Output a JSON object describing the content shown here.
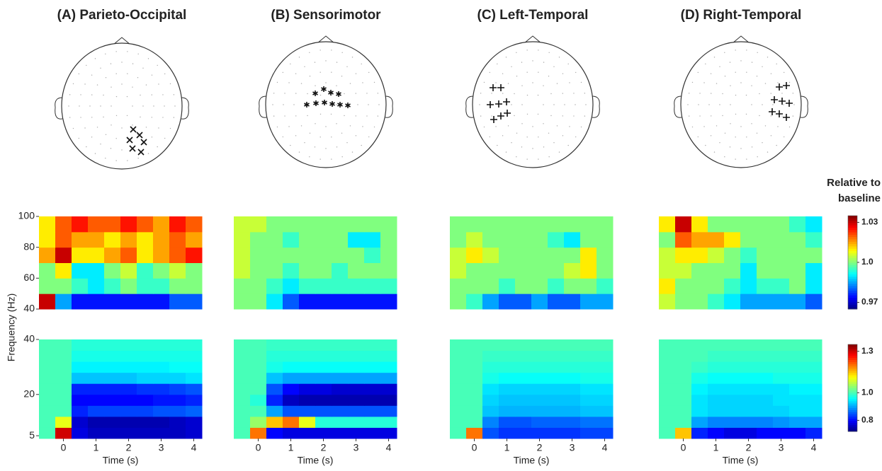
{
  "chart_data": [
    {
      "type": "heatmap",
      "title": "(A) Parieto-Occipital",
      "marker": "x",
      "x": [
        -0.5,
        0,
        0.5,
        1,
        1.5,
        2,
        2.5,
        3,
        3.5,
        4
      ],
      "y": [
        45,
        55,
        65,
        75,
        85,
        95
      ],
      "xlim": [
        -0.75,
        4.25
      ],
      "ylim": [
        40,
        100
      ],
      "yticks": [
        40,
        60,
        80,
        100
      ],
      "zlim": [
        0.965,
        1.035
      ],
      "z": [
        [
          1.03,
          0.985,
          0.975,
          0.975,
          0.975,
          0.975,
          0.975,
          0.975,
          0.98,
          0.98
        ],
        [
          1.0,
          1.0,
          0.995,
          0.99,
          0.995,
          1.0,
          0.995,
          0.995,
          1.0,
          1.0
        ],
        [
          1.0,
          1.01,
          0.99,
          0.99,
          1.0,
          1.005,
          0.995,
          1.0,
          1.005,
          1.0
        ],
        [
          1.015,
          1.03,
          1.01,
          1.01,
          1.015,
          1.02,
          1.01,
          1.015,
          1.02,
          1.025
        ],
        [
          1.01,
          1.02,
          1.015,
          1.015,
          1.01,
          1.015,
          1.01,
          1.015,
          1.02,
          1.015
        ],
        [
          1.01,
          1.02,
          1.025,
          1.02,
          1.02,
          1.025,
          1.02,
          1.015,
          1.025,
          1.02
        ]
      ]
    },
    {
      "type": "heatmap",
      "title": "(B) Sensorimotor",
      "marker": "asterisk",
      "x": [
        -0.5,
        0,
        0.5,
        1,
        1.5,
        2,
        2.5,
        3,
        3.5,
        4
      ],
      "y": [
        45,
        55,
        65,
        75,
        85,
        95
      ],
      "xlim": [
        -0.75,
        4.25
      ],
      "ylim": [
        40,
        100
      ],
      "zlim": [
        0.965,
        1.035
      ],
      "z": [
        [
          1.0,
          1.0,
          0.99,
          0.98,
          0.975,
          0.975,
          0.975,
          0.975,
          0.975,
          0.975
        ],
        [
          1.0,
          1.0,
          0.995,
          0.99,
          0.995,
          0.995,
          0.995,
          0.995,
          0.995,
          0.995
        ],
        [
          1.005,
          1.0,
          1.0,
          0.995,
          1.0,
          1.0,
          0.995,
          1.0,
          1.0,
          1.0
        ],
        [
          1.005,
          1.0,
          1.0,
          1.0,
          1.0,
          1.0,
          1.0,
          1.0,
          0.995,
          1.0
        ],
        [
          1.005,
          1.0,
          1.0,
          0.995,
          1.0,
          1.0,
          1.0,
          0.99,
          0.99,
          1.0
        ],
        [
          1.005,
          1.005,
          1.0,
          1.0,
          1.0,
          1.0,
          1.0,
          1.0,
          1.0,
          1.0
        ]
      ]
    },
    {
      "type": "heatmap",
      "title": "(C) Left-Temporal",
      "marker": "plus",
      "x": [
        -0.5,
        0,
        0.5,
        1,
        1.5,
        2,
        2.5,
        3,
        3.5,
        4
      ],
      "y": [
        45,
        55,
        65,
        75,
        85,
        95
      ],
      "xlim": [
        -0.75,
        4.25
      ],
      "ylim": [
        40,
        100
      ],
      "zlim": [
        0.965,
        1.035
      ],
      "z": [
        [
          1.0,
          0.995,
          0.985,
          0.98,
          0.98,
          0.985,
          0.98,
          0.98,
          0.985,
          0.985
        ],
        [
          1.0,
          1.0,
          1.0,
          0.995,
          1.0,
          1.0,
          0.995,
          1.0,
          1.0,
          0.995
        ],
        [
          1.005,
          1.0,
          1.0,
          1.0,
          1.0,
          1.0,
          1.0,
          1.005,
          1.01,
          1.0
        ],
        [
          1.005,
          1.01,
          1.005,
          1.0,
          1.0,
          1.0,
          1.0,
          1.0,
          1.01,
          1.0
        ],
        [
          1.0,
          1.005,
          1.0,
          1.0,
          1.0,
          1.0,
          0.995,
          0.99,
          1.0,
          1.0
        ],
        [
          1.0,
          1.0,
          1.0,
          1.0,
          1.0,
          1.0,
          1.0,
          1.0,
          1.0,
          1.0
        ]
      ]
    },
    {
      "type": "heatmap",
      "title": "(D) Right-Temporal",
      "marker": "plus",
      "x": [
        -0.5,
        0,
        0.5,
        1,
        1.5,
        2,
        2.5,
        3,
        3.5,
        4
      ],
      "y": [
        45,
        55,
        65,
        75,
        85,
        95
      ],
      "xlim": [
        -0.75,
        4.25
      ],
      "ylim": [
        40,
        100
      ],
      "zlim": [
        0.965,
        1.035
      ],
      "zticks": [
        0.97,
        {
          "value": 1,
          "label": "1.0"
        },
        1.03
      ],
      "colorbar_label": "Relative to baseline",
      "z": [
        [
          1.005,
          1.0,
          1.0,
          0.995,
          0.99,
          0.985,
          0.985,
          0.985,
          0.985,
          0.98
        ],
        [
          1.01,
          1.0,
          1.0,
          1.0,
          0.995,
          0.99,
          0.995,
          0.995,
          1.0,
          0.99
        ],
        [
          1.005,
          1.005,
          1.0,
          1.0,
          1.0,
          0.99,
          1.0,
          1.0,
          1.0,
          0.99
        ],
        [
          1.005,
          1.01,
          1.01,
          1.005,
          1.0,
          0.995,
          1.0,
          1.0,
          1.0,
          1.0
        ],
        [
          1.0,
          1.02,
          1.015,
          1.015,
          1.01,
          1.0,
          1.0,
          1.0,
          1.0,
          0.995
        ],
        [
          1.01,
          1.03,
          1.01,
          1.0,
          1.0,
          1.0,
          1.0,
          1.0,
          0.995,
          0.99
        ]
      ]
    },
    {
      "type": "heatmap",
      "ylabel": "Frequency (Hz)",
      "xlabel": "Time (s)",
      "x": [
        -0.5,
        0,
        0.5,
        1,
        1.5,
        2,
        2.5,
        3,
        3.5,
        4
      ],
      "y": [
        6,
        10,
        14,
        18,
        22,
        26,
        30,
        34,
        38
      ],
      "xlim": [
        -0.75,
        4.25
      ],
      "ylim": [
        4,
        40
      ],
      "xticks": [
        0,
        1,
        2,
        3,
        4
      ],
      "yticks": [
        5,
        20,
        40
      ],
      "zlim": [
        0.72,
        1.35
      ],
      "z": [
        [
          1.0,
          1.3,
          0.78,
          0.76,
          0.76,
          0.76,
          0.76,
          0.76,
          0.76,
          0.77
        ],
        [
          1.0,
          1.1,
          0.77,
          0.75,
          0.75,
          0.75,
          0.75,
          0.75,
          0.76,
          0.77
        ],
        [
          1.0,
          1.0,
          0.82,
          0.84,
          0.84,
          0.84,
          0.84,
          0.85,
          0.85,
          0.86
        ],
        [
          1.0,
          1.0,
          0.8,
          0.8,
          0.8,
          0.8,
          0.8,
          0.81,
          0.81,
          0.82
        ],
        [
          1.0,
          1.0,
          0.82,
          0.82,
          0.82,
          0.82,
          0.83,
          0.83,
          0.84,
          0.85
        ],
        [
          1.0,
          1.0,
          0.92,
          0.92,
          0.92,
          0.92,
          0.93,
          0.93,
          0.93,
          0.94
        ],
        [
          1.0,
          1.0,
          0.95,
          0.95,
          0.95,
          0.95,
          0.95,
          0.95,
          0.96,
          0.96
        ],
        [
          1.0,
          1.0,
          0.97,
          0.97,
          0.97,
          0.97,
          0.97,
          0.97,
          0.97,
          0.97
        ],
        [
          1.0,
          1.0,
          0.98,
          0.98,
          0.98,
          0.98,
          0.98,
          0.98,
          0.98,
          0.98
        ]
      ]
    },
    {
      "type": "heatmap",
      "xlabel": "Time (s)",
      "x": [
        -0.5,
        0,
        0.5,
        1,
        1.5,
        2,
        2.5,
        3,
        3.5,
        4
      ],
      "y": [
        6,
        10,
        14,
        18,
        22,
        26,
        30,
        34,
        38
      ],
      "xlim": [
        -0.75,
        4.25
      ],
      "ylim": [
        4,
        40
      ],
      "xticks": [
        0,
        1,
        2,
        3,
        4
      ],
      "zlim": [
        0.72,
        1.35
      ],
      "z": [
        [
          1.0,
          1.2,
          0.8,
          0.78,
          0.78,
          0.78,
          0.78,
          0.78,
          0.78,
          0.78
        ],
        [
          1.0,
          1.05,
          1.15,
          1.2,
          1.1,
          0.98,
          0.98,
          0.98,
          0.98,
          0.98
        ],
        [
          1.0,
          1.0,
          0.9,
          0.85,
          0.85,
          0.85,
          0.85,
          0.85,
          0.85,
          0.85
        ],
        [
          1.0,
          0.98,
          0.82,
          0.76,
          0.75,
          0.75,
          0.75,
          0.75,
          0.75,
          0.75
        ],
        [
          1.0,
          1.0,
          0.85,
          0.8,
          0.78,
          0.78,
          0.77,
          0.77,
          0.77,
          0.77
        ],
        [
          1.0,
          1.0,
          0.92,
          0.9,
          0.9,
          0.9,
          0.9,
          0.9,
          0.9,
          0.9
        ],
        [
          1.0,
          1.0,
          0.97,
          0.96,
          0.96,
          0.96,
          0.96,
          0.96,
          0.96,
          0.96
        ],
        [
          1.0,
          1.0,
          0.98,
          0.98,
          0.98,
          0.98,
          0.98,
          0.98,
          0.98,
          0.98
        ],
        [
          1.0,
          1.0,
          0.99,
          0.99,
          0.99,
          0.99,
          0.99,
          0.99,
          0.99,
          0.99
        ]
      ]
    },
    {
      "type": "heatmap",
      "xlabel": "Time (s)",
      "x": [
        -0.5,
        0,
        0.5,
        1,
        1.5,
        2,
        2.5,
        3,
        3.5,
        4
      ],
      "y": [
        6,
        10,
        14,
        18,
        22,
        26,
        30,
        34,
        38
      ],
      "xlim": [
        -0.75,
        4.25
      ],
      "ylim": [
        4,
        40
      ],
      "xticks": [
        0,
        1,
        2,
        3,
        4
      ],
      "zlim": [
        0.72,
        1.35
      ],
      "z": [
        [
          1.0,
          1.2,
          0.85,
          0.83,
          0.83,
          0.83,
          0.83,
          0.83,
          0.84,
          0.84
        ],
        [
          1.0,
          1.0,
          0.88,
          0.85,
          0.85,
          0.86,
          0.86,
          0.86,
          0.87,
          0.87
        ],
        [
          1.0,
          1.0,
          0.92,
          0.91,
          0.91,
          0.91,
          0.91,
          0.91,
          0.92,
          0.92
        ],
        [
          1.0,
          1.0,
          0.93,
          0.92,
          0.92,
          0.92,
          0.92,
          0.92,
          0.93,
          0.93
        ],
        [
          1.0,
          1.0,
          0.94,
          0.93,
          0.93,
          0.93,
          0.93,
          0.93,
          0.94,
          0.94
        ],
        [
          1.0,
          1.0,
          0.97,
          0.96,
          0.96,
          0.96,
          0.96,
          0.96,
          0.97,
          0.97
        ],
        [
          1.0,
          1.0,
          0.98,
          0.98,
          0.98,
          0.98,
          0.98,
          0.98,
          0.98,
          0.98
        ],
        [
          1.0,
          1.0,
          0.99,
          0.99,
          0.99,
          0.99,
          0.99,
          0.99,
          0.99,
          0.99
        ],
        [
          1.0,
          1.0,
          1.0,
          1.0,
          1.0,
          1.0,
          1.0,
          1.0,
          1.0,
          1.0
        ]
      ]
    },
    {
      "type": "heatmap",
      "xlabel": "Time (s)",
      "x": [
        -0.5,
        0,
        0.5,
        1,
        1.5,
        2,
        2.5,
        3,
        3.5,
        4
      ],
      "y": [
        6,
        10,
        14,
        18,
        22,
        26,
        30,
        34,
        38
      ],
      "xlim": [
        -0.75,
        4.25
      ],
      "ylim": [
        4,
        40
      ],
      "xticks": [
        0,
        1,
        2,
        3,
        4
      ],
      "zlim": [
        0.72,
        1.35
      ],
      "zticks": [
        0.8,
        {
          "value": 1,
          "label": "1.0"
        },
        1.3
      ],
      "z": [
        [
          1.0,
          1.15,
          0.82,
          0.8,
          0.78,
          0.78,
          0.8,
          0.8,
          0.8,
          0.82
        ],
        [
          1.0,
          1.0,
          0.9,
          0.88,
          0.88,
          0.88,
          0.88,
          0.89,
          0.9,
          0.9
        ],
        [
          1.0,
          1.0,
          0.94,
          0.93,
          0.93,
          0.93,
          0.93,
          0.93,
          0.94,
          0.94
        ],
        [
          1.0,
          1.0,
          0.94,
          0.93,
          0.93,
          0.93,
          0.93,
          0.94,
          0.94,
          0.94
        ],
        [
          1.0,
          1.0,
          0.95,
          0.94,
          0.94,
          0.94,
          0.94,
          0.94,
          0.95,
          0.95
        ],
        [
          1.0,
          1.0,
          0.97,
          0.96,
          0.96,
          0.96,
          0.96,
          0.97,
          0.97,
          0.97
        ],
        [
          1.0,
          1.0,
          0.99,
          0.98,
          0.98,
          0.98,
          0.98,
          0.98,
          0.98,
          0.98
        ],
        [
          1.0,
          1.0,
          1.0,
          0.99,
          0.99,
          0.99,
          0.99,
          0.99,
          0.99,
          0.99
        ],
        [
          1.0,
          1.0,
          1.0,
          1.0,
          1.0,
          1.0,
          1.0,
          1.0,
          1.0,
          1.0
        ]
      ]
    }
  ]
}
